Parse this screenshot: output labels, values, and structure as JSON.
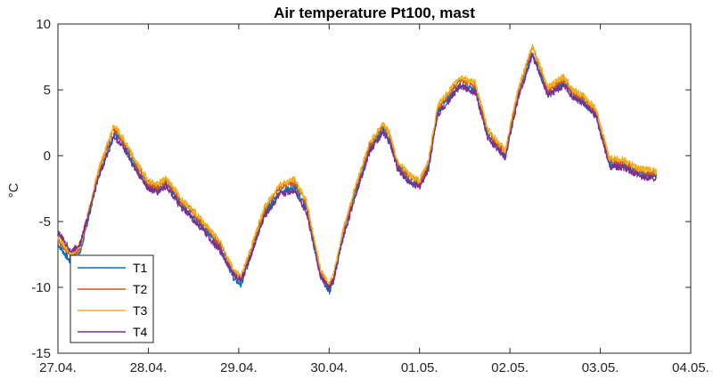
{
  "chart_data": {
    "type": "line",
    "title": "Air temperature Pt100, mast",
    "xlabel": "",
    "ylabel": "°C",
    "ylim": [
      -15,
      10
    ],
    "yticks": [
      -15,
      -10,
      -5,
      0,
      5,
      10
    ],
    "xlim": [
      "27.04.",
      "04.05."
    ],
    "xtick_labels": [
      "27.04.",
      "28.04.",
      "29.04.",
      "30.04.",
      "01.05.",
      "02.05.",
      "03.05.",
      "04.05."
    ],
    "grid": false,
    "legend_position": "bottom-left",
    "x_days": [
      0,
      0.15,
      0.25,
      0.45,
      0.62,
      0.72,
      0.85,
      1.0,
      1.1,
      1.2,
      1.3,
      1.35,
      1.45,
      1.62,
      1.8,
      1.95,
      2.03,
      2.1,
      2.28,
      2.45,
      2.62,
      2.75,
      2.9,
      3.0,
      3.05,
      3.15,
      3.3,
      3.45,
      3.6,
      3.68,
      3.75,
      3.88,
      4.0,
      4.1,
      4.2,
      4.45,
      4.62,
      4.75,
      4.85,
      4.95,
      5.03,
      5.1,
      5.25,
      5.42,
      5.6,
      5.7,
      5.8,
      5.95,
      6.1,
      6.25,
      6.38,
      6.45,
      6.6,
      6.62
    ],
    "series": [
      {
        "name": "T1",
        "color": "#0072BD",
        "values": [
          -6.7,
          -8.2,
          -7.3,
          -1.5,
          1.7,
          0.9,
          -0.8,
          -2.4,
          -2.7,
          -2.1,
          -3.0,
          -3.6,
          -4.2,
          -5.5,
          -7.0,
          -9.4,
          -9.8,
          -8.3,
          -4.5,
          -2.8,
          -2.4,
          -4.0,
          -9.0,
          -10.4,
          -9.5,
          -6.2,
          -2.6,
          0.5,
          2.0,
          1.0,
          -0.7,
          -1.9,
          -2.3,
          -0.8,
          3.3,
          5.4,
          4.9,
          1.6,
          0.8,
          0.0,
          2.6,
          4.8,
          7.8,
          4.7,
          5.5,
          4.5,
          4.1,
          3.2,
          -0.6,
          -0.7,
          -1.2,
          -1.4,
          -1.5,
          -1.6
        ]
      },
      {
        "name": "T2",
        "color": "#D95319",
        "values": [
          -6.3,
          -7.7,
          -7.0,
          -1.2,
          2.1,
          1.1,
          -0.5,
          -2.1,
          -2.4,
          -1.9,
          -2.8,
          -3.4,
          -4.0,
          -5.3,
          -6.8,
          -9.0,
          -9.4,
          -8.0,
          -4.2,
          -2.4,
          -2.0,
          -3.7,
          -8.7,
          -10.0,
          -9.2,
          -5.9,
          -2.3,
          0.8,
          2.3,
          1.3,
          -0.5,
          -1.6,
          -2.1,
          -0.5,
          3.6,
          5.8,
          5.3,
          1.9,
          1.0,
          0.2,
          2.9,
          5.1,
          8.2,
          5.0,
          5.8,
          4.8,
          4.4,
          3.4,
          -0.4,
          -0.5,
          -1.0,
          -1.2,
          -1.3,
          -1.4
        ]
      },
      {
        "name": "T3",
        "color": "#EDB120",
        "values": [
          -6.1,
          -7.5,
          -6.7,
          -1.0,
          2.3,
          1.3,
          -0.3,
          -1.9,
          -2.2,
          -1.7,
          -2.6,
          -3.2,
          -3.8,
          -5.1,
          -6.6,
          -8.8,
          -9.1,
          -7.7,
          -4.0,
          -2.2,
          -1.8,
          -3.5,
          -8.5,
          -9.8,
          -9.0,
          -5.7,
          -2.1,
          1.0,
          2.5,
          1.5,
          -0.3,
          -1.4,
          -1.9,
          -0.3,
          3.8,
          6.0,
          5.5,
          2.1,
          1.2,
          0.4,
          3.1,
          5.3,
          8.4,
          5.2,
          6.0,
          5.0,
          4.6,
          3.6,
          -0.2,
          -0.3,
          -0.8,
          -1.0,
          -1.1,
          -1.2
        ]
      },
      {
        "name": "T4",
        "color": "#7E2F8E",
        "values": [
          -5.8,
          -7.3,
          -6.6,
          -1.6,
          1.4,
          0.7,
          -1.0,
          -2.5,
          -2.8,
          -2.3,
          -3.3,
          -3.9,
          -4.5,
          -5.8,
          -7.3,
          -9.1,
          -9.4,
          -8.2,
          -4.7,
          -3.0,
          -2.6,
          -4.3,
          -9.1,
          -10.1,
          -9.4,
          -6.4,
          -2.8,
          0.3,
          1.8,
          0.8,
          -0.9,
          -2.0,
          -2.4,
          -1.0,
          3.1,
          5.3,
          4.8,
          1.4,
          0.6,
          -0.1,
          2.4,
          4.6,
          7.6,
          4.6,
          5.3,
          4.4,
          4.0,
          3.0,
          -0.8,
          -0.9,
          -1.4,
          -1.6,
          -1.7,
          -1.9
        ]
      }
    ]
  }
}
